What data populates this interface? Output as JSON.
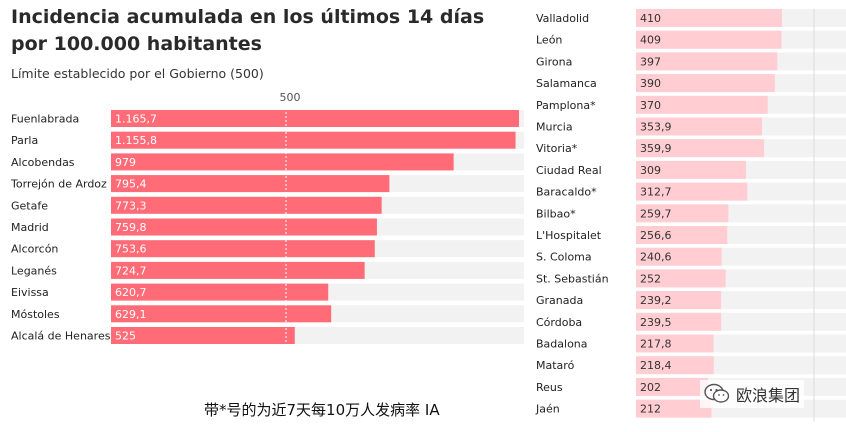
{
  "title": "Incidencia acumulada en los últimos 14 días por 100.000 habitantes",
  "subtitle": "Límite establecido por el Gobierno (500)",
  "reference_label": "500",
  "footnote": "带*号的为近7天每10万人发病率 IA",
  "watermark": {
    "text": "欧浪集团",
    "icon": "wechat-icon"
  },
  "colors": {
    "left_bar": "#ff6b77",
    "right_bar": "#ffcdd2",
    "track": "#f2f2f2"
  },
  "chart_data": [
    {
      "type": "bar",
      "orientation": "horizontal",
      "reference_line": 500,
      "categories": [
        "Fuenlabrada",
        "Parla",
        "Alcobendas",
        "Torrejón de Ardoz",
        "Getafe",
        "Madrid",
        "Alcorcón",
        "Leganés",
        "Eivissa",
        "Móstoles",
        "Alcalá de Henares"
      ],
      "values": [
        1165.7,
        1155.8,
        979,
        795.4,
        773.3,
        759.8,
        753.6,
        724.7,
        620.7,
        629.1,
        525
      ],
      "labels": [
        "1.165,7",
        "1.155,8",
        "979",
        "795,4",
        "773,3",
        "759,8",
        "753,6",
        "724,7",
        "620,7",
        "629,1",
        "525"
      ],
      "xlim": [
        0,
        1180
      ]
    },
    {
      "type": "bar",
      "orientation": "horizontal",
      "categories": [
        "Valladolid",
        "León",
        "Girona",
        "Salamanca",
        "Pamplona*",
        "Murcia",
        "Vitoria*",
        "Ciudad Real",
        "Baracaldo*",
        "Bilbao*",
        "L'Hospitalet",
        "S. Coloma",
        "St. Sebastián",
        "Granada",
        "Córdoba",
        "Badalona",
        "Mataró",
        "Reus",
        "Jaén"
      ],
      "values": [
        410,
        409,
        397,
        390,
        370,
        353.9,
        359.9,
        309,
        312.7,
        259.7,
        256.6,
        240.6,
        252,
        239.2,
        239.5,
        217.8,
        218.4,
        202,
        212
      ],
      "labels": [
        "410",
        "409",
        "397",
        "390",
        "370",
        "353,9",
        "359,9",
        "309",
        "312,7",
        "259,7",
        "256,6",
        "240,6",
        "252",
        "239,2",
        "239,5",
        "217,8",
        "218,4",
        "202",
        "212"
      ],
      "xlim": [
        0,
        590
      ]
    }
  ]
}
